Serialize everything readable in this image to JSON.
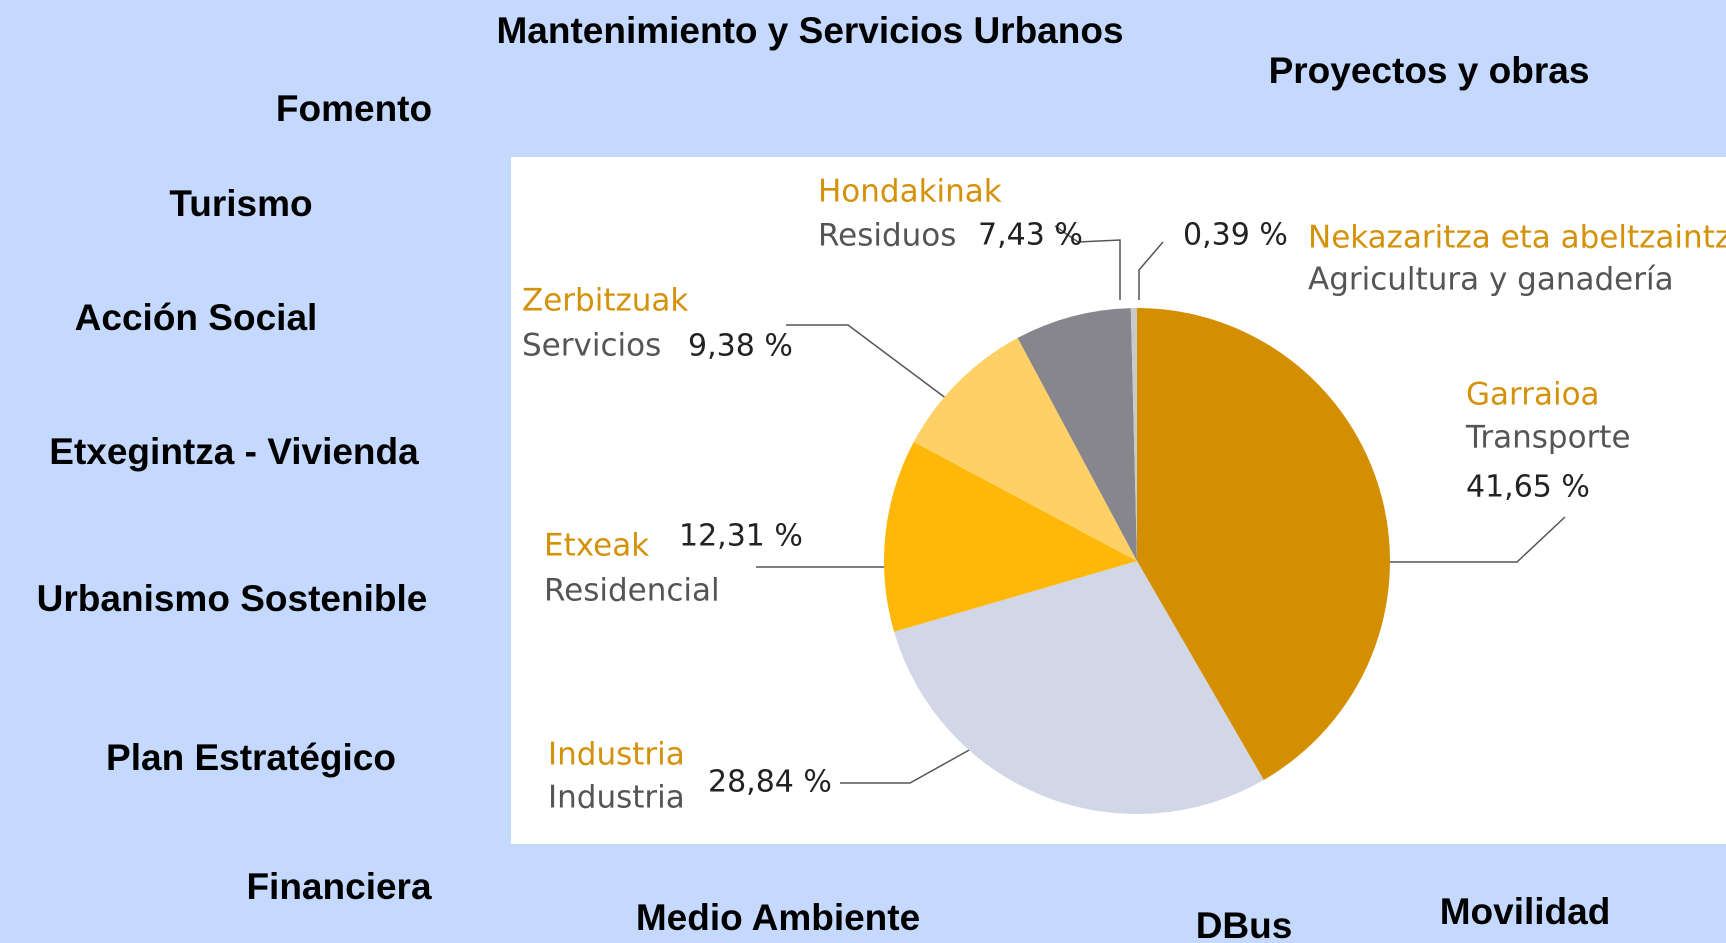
{
  "nav": [
    "Mantenimiento y Servicios Urbanos",
    "Proyectos y obras",
    "Fomento",
    "Turismo",
    "Acción Social",
    "Etxegintza - Vivienda",
    "Urbanismo Sostenible",
    "Plan Estratégico",
    "Financiera",
    "Medio Ambiente",
    "DBus",
    "Movilidad"
  ],
  "chart_data": {
    "type": "pie",
    "categories": [
      "Transporte",
      "Industria",
      "Residencial",
      "Servicios",
      "Residuos",
      "Agricultura y ganadería"
    ],
    "categories_eu": [
      "Garraioa",
      "Industria",
      "Etxeak",
      "Zerbitzuak",
      "Hondakinak",
      "Nekazaritza eta abeltzaintza"
    ],
    "values": [
      41.65,
      28.84,
      12.31,
      9.38,
      7.43,
      0.39
    ],
    "value_labels": [
      "41,65 %",
      "28,84 %",
      "12,31 %",
      "9,38 %",
      "7,43 %",
      "0,39 %"
    ],
    "colors": [
      "#d48f00",
      "#d1d7e6",
      "#ffb80a",
      "#ffd065",
      "#86868c",
      "#c9c9c9"
    ]
  }
}
